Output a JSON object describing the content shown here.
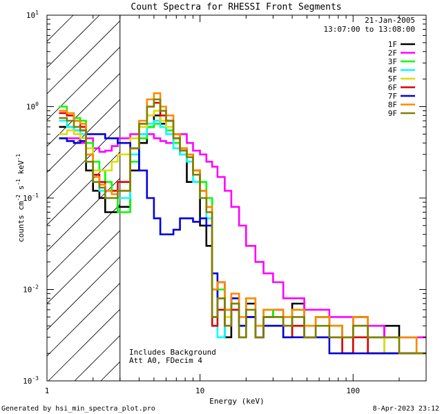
{
  "chart_data": {
    "type": "line",
    "title": "Count Spectra for RHESSI Front Segments",
    "xlabel": "Energy (keV)",
    "ylabel": "counts cm",
    "ylabel_sup1": "-2",
    "ylabel_mid": " s",
    "ylabel_sup2": "-1",
    "ylabel_end": " keV",
    "ylabel_sup3": "-1",
    "xscale": "log",
    "yscale": "log",
    "xlim": [
      1,
      300
    ],
    "ylim": [
      0.001,
      10
    ],
    "x_ticks": [
      {
        "value": 1,
        "label": "1"
      },
      {
        "value": 10,
        "label": "10"
      },
      {
        "value": 100,
        "label": "100"
      }
    ],
    "y_ticks": [
      {
        "value": 0.001,
        "base": "10",
        "exp": "-3"
      },
      {
        "value": 0.01,
        "base": "10",
        "exp": "-2"
      },
      {
        "value": 0.1,
        "base": "10",
        "exp": "-1"
      },
      {
        "value": 1,
        "base": "10",
        "exp": "0"
      },
      {
        "value": 10,
        "base": "10",
        "exp": "1"
      }
    ],
    "shaded_region_max_energy": 3,
    "date": "21-Jan-2005",
    "time_range": "13:07:00 to 13:08:00",
    "annotations": [
      "Includes Background",
      "Att A0, FDecim 4"
    ],
    "legend_position": "top-right",
    "series": [
      {
        "name": "1F",
        "color": "#000000",
        "values": [
          0.6,
          0.6,
          0.55,
          0.55,
          0.2,
          0.12,
          0.1,
          0.07,
          0.07,
          0.08,
          0.2,
          0.4,
          0.6,
          0.8,
          0.65,
          0.7,
          0.45,
          0.3,
          0.15,
          0.15,
          0.05,
          0.03,
          0.005,
          0.012,
          0.003,
          0.008,
          0.004,
          0.007,
          0.003,
          0.005,
          0.006,
          0.004,
          0.007,
          0.003,
          0.005,
          0.004,
          0.003,
          0.005,
          0.003,
          0.004,
          0.003,
          0.003
        ]
      },
      {
        "name": "2F",
        "color": "#ff00ff",
        "values": [
          0.45,
          0.45,
          0.45,
          0.4,
          0.45,
          0.35,
          0.32,
          0.33,
          0.37,
          0.45,
          0.5,
          0.5,
          0.5,
          0.45,
          0.42,
          0.4,
          0.45,
          0.5,
          0.4,
          0.33,
          0.3,
          0.25,
          0.22,
          0.17,
          0.12,
          0.08,
          0.05,
          0.03,
          0.02,
          0.015,
          0.012,
          0.008,
          0.008,
          0.006,
          0.006,
          0.005,
          0.005,
          0.004,
          0.004,
          0.003,
          0.003,
          0.003
        ]
      },
      {
        "name": "3F",
        "color": "#00ff00",
        "values": [
          1.0,
          0.8,
          0.75,
          0.7,
          0.4,
          0.25,
          0.2,
          0.15,
          0.12,
          0.07,
          0.25,
          0.45,
          0.6,
          0.65,
          0.6,
          0.55,
          0.4,
          0.35,
          0.3,
          0.2,
          0.15,
          0.1,
          0.01,
          0.01,
          0.006,
          0.007,
          0.004,
          0.008,
          0.004,
          0.006,
          0.005,
          0.005,
          0.006,
          0.004,
          0.005,
          0.004,
          0.003,
          0.004,
          0.003,
          0.003,
          0.003,
          0.002
        ]
      },
      {
        "name": "4F",
        "color": "#00ffff",
        "values": [
          0.7,
          0.6,
          0.55,
          0.5,
          0.25,
          0.15,
          0.12,
          0.1,
          0.1,
          0.1,
          0.3,
          0.5,
          0.65,
          0.7,
          0.6,
          0.5,
          0.35,
          0.3,
          0.25,
          0.15,
          0.1,
          0.06,
          0.005,
          0.003,
          0.004,
          0.006,
          0.003,
          0.005,
          0.003,
          0.004,
          0.004,
          0.003,
          0.004,
          0.003,
          0.003,
          0.003,
          0.002,
          0.003,
          0.003,
          0.002,
          0.002,
          0.002
        ]
      },
      {
        "name": "5F",
        "color": "#dddd00",
        "values": [
          0.5,
          0.55,
          0.5,
          0.45,
          0.35,
          0.2,
          0.2,
          0.2,
          0.25,
          0.3,
          0.45,
          0.6,
          0.8,
          0.9,
          0.7,
          0.6,
          0.45,
          0.35,
          0.3,
          0.2,
          0.12,
          0.08,
          0.01,
          0.008,
          0.005,
          0.006,
          0.004,
          0.005,
          0.004,
          0.004,
          0.004,
          0.003,
          0.004,
          0.003,
          0.003,
          0.003,
          0.003,
          0.003,
          0.002,
          0.003,
          0.002,
          0.002
        ]
      },
      {
        "name": "6F",
        "color": "#dd0000",
        "values": [
          0.85,
          0.8,
          0.7,
          0.6,
          0.3,
          0.18,
          0.15,
          0.12,
          0.12,
          0.15,
          0.35,
          0.65,
          1.0,
          1.1,
          0.8,
          0.7,
          0.5,
          0.35,
          0.3,
          0.2,
          0.12,
          0.08,
          0.004,
          0.006,
          0.004,
          0.006,
          0.003,
          0.005,
          0.003,
          0.004,
          0.004,
          0.003,
          0.004,
          0.003,
          0.003,
          0.003,
          0.002,
          0.003,
          0.002,
          0.002,
          0.002,
          0.002
        ]
      },
      {
        "name": "7F",
        "color": "#0000dd",
        "values": [
          0.45,
          0.42,
          0.4,
          0.42,
          0.5,
          0.5,
          0.5,
          0.45,
          0.45,
          0.4,
          0.35,
          0.2,
          0.1,
          0.06,
          0.04,
          0.04,
          0.045,
          0.06,
          0.06,
          0.055,
          0.06,
          0.05,
          0.015,
          0.008,
          0.006,
          0.008,
          0.004,
          0.005,
          0.003,
          0.004,
          0.004,
          0.003,
          0.003,
          0.003,
          0.003,
          0.002,
          0.002,
          0.002,
          0.002,
          0.002,
          0.002,
          0.002
        ]
      },
      {
        "name": "8F",
        "color": "#ff8800",
        "values": [
          0.9,
          0.85,
          0.7,
          0.65,
          0.3,
          0.17,
          0.14,
          0.12,
          0.11,
          0.12,
          0.35,
          0.7,
          1.2,
          1.4,
          1.0,
          0.8,
          0.5,
          0.35,
          0.3,
          0.2,
          0.12,
          0.08,
          0.01,
          0.012,
          0.006,
          0.009,
          0.005,
          0.008,
          0.004,
          0.006,
          0.006,
          0.005,
          0.006,
          0.004,
          0.005,
          0.004,
          0.003,
          0.005,
          0.003,
          0.003,
          0.003,
          0.002
        ]
      },
      {
        "name": "9F",
        "color": "#808000",
        "values": [
          0.75,
          0.7,
          0.6,
          0.55,
          0.25,
          0.15,
          0.13,
          0.1,
          0.1,
          0.12,
          0.35,
          0.65,
          1.0,
          1.2,
          0.9,
          0.7,
          0.45,
          0.33,
          0.28,
          0.18,
          0.1,
          0.07,
          0.005,
          0.008,
          0.004,
          0.007,
          0.003,
          0.006,
          0.003,
          0.005,
          0.005,
          0.004,
          0.005,
          0.003,
          0.004,
          0.003,
          0.003,
          0.004,
          0.003,
          0.003,
          0.002,
          0.002
        ]
      }
    ],
    "energy_bins": [
      1.2,
      1.35,
      1.5,
      1.65,
      1.8,
      2.0,
      2.2,
      2.4,
      2.65,
      2.9,
      3.5,
      4.0,
      4.5,
      5.0,
      5.5,
      6.0,
      6.7,
      7.4,
      8.2,
      9.0,
      10.0,
      11.0,
      12.0,
      13.0,
      14.5,
      16.0,
      18.0,
      20.0,
      23.0,
      26.0,
      30.0,
      35.0,
      40.0,
      48.0,
      57.0,
      70.0,
      85.0,
      100.0,
      125.0,
      160.0,
      200.0,
      260.0
    ]
  },
  "footer": {
    "generated_by": "Generated by hsi_min_spectra_plot.pro",
    "timestamp": "8-Apr-2023 23:12"
  }
}
